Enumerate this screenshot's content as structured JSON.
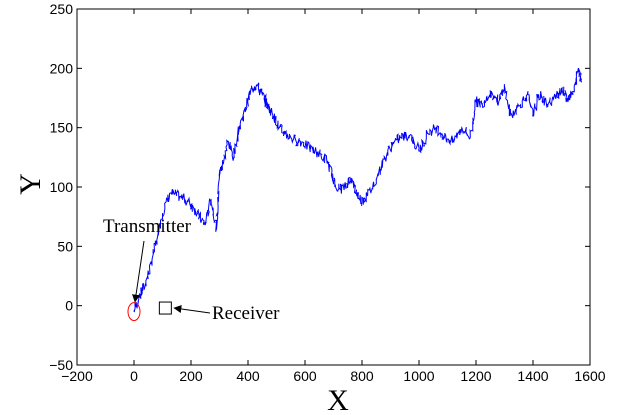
{
  "chart_data": {
    "type": "line",
    "xlabel": "X",
    "ylabel": "Y",
    "xlim": [
      -200,
      1600
    ],
    "ylim": [
      -50,
      250
    ],
    "xticks": [
      -200,
      0,
      200,
      400,
      600,
      800,
      1000,
      1200,
      1400,
      1600
    ],
    "yticks": [
      -50,
      0,
      50,
      100,
      150,
      200,
      250
    ],
    "xtick_labels": [
      "−200",
      "0",
      "200",
      "400",
      "600",
      "800",
      "1000",
      "1200",
      "1400",
      "1600"
    ],
    "ytick_labels": [
      "−50",
      "0",
      "50",
      "100",
      "150",
      "200",
      "250"
    ],
    "grid": false,
    "series": [
      {
        "color": "#0000ff",
        "x": [
          0,
          20,
          40,
          60,
          80,
          100,
          130,
          160,
          190,
          210,
          230,
          250,
          270,
          290,
          300,
          310,
          330,
          350,
          370,
          390,
          410,
          430,
          450,
          470,
          490,
          510,
          530,
          560,
          590,
          620,
          650,
          680,
          700,
          720,
          740,
          760,
          780,
          800,
          820,
          850,
          880,
          910,
          940,
          970,
          1000,
          1030,
          1060,
          1090,
          1120,
          1150,
          1180,
          1200,
          1220,
          1250,
          1280,
          1300,
          1320,
          1350,
          1380,
          1400,
          1420,
          1450,
          1480,
          1500,
          1520,
          1540,
          1560,
          1570
        ],
        "y": [
          -5,
          8,
          18,
          35,
          55,
          78,
          95,
          92,
          88,
          82,
          75,
          68,
          90,
          65,
          110,
          118,
          138,
          125,
          150,
          165,
          182,
          186,
          178,
          168,
          160,
          150,
          145,
          140,
          138,
          132,
          128,
          122,
          105,
          98,
          100,
          108,
          95,
          88,
          93,
          107,
          125,
          138,
          142,
          144,
          130,
          145,
          150,
          142,
          138,
          150,
          142,
          172,
          170,
          180,
          172,
          185,
          160,
          168,
          178,
          160,
          178,
          170,
          176,
          183,
          175,
          178,
          200,
          190
        ]
      }
    ],
    "annotations": [
      {
        "text": "Transmitter",
        "x": 0,
        "y": -5,
        "marker": "red-ellipse"
      },
      {
        "text": "Receiver",
        "x": 110,
        "y": -2,
        "marker": "square"
      }
    ]
  }
}
